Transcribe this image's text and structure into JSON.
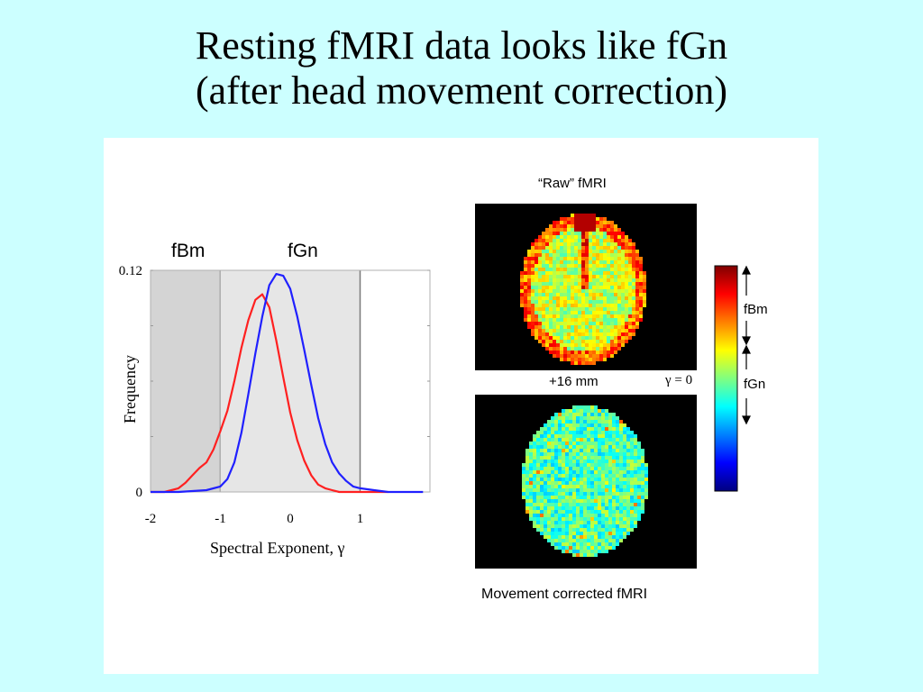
{
  "title": {
    "line1": "Resting fMRI data looks like fGn",
    "line2": "(after head movement correction)"
  },
  "chart_data": {
    "type": "line",
    "xlabel": "Spectral Exponent, γ",
    "ylabel": "Frequency",
    "xlim": [
      -2.0,
      2.0
    ],
    "ylim": [
      0,
      0.12
    ],
    "x_ticks": [
      "-2",
      "-1",
      "0",
      "1"
    ],
    "y_ticks": [
      "0.12",
      "0"
    ],
    "regions": [
      {
        "label": "fBm",
        "from": -2.0,
        "to": -1.0,
        "color": "#d4d4d4"
      },
      {
        "label": "fGn",
        "from": -1.0,
        "to": 1.0,
        "color": "#e6e6e6"
      }
    ],
    "series": [
      {
        "color": "#ff2020",
        "x": [
          -2.0,
          -1.8,
          -1.6,
          -1.5,
          -1.4,
          -1.3,
          -1.2,
          -1.1,
          -1.0,
          -0.9,
          -0.8,
          -0.7,
          -0.6,
          -0.5,
          -0.4,
          -0.3,
          -0.2,
          -0.1,
          0.0,
          0.1,
          0.2,
          0.3,
          0.4,
          0.5,
          0.6,
          0.7,
          0.8,
          0.9,
          1.0,
          1.2,
          1.4
        ],
        "y": [
          0.0,
          0.0,
          0.002,
          0.005,
          0.009,
          0.013,
          0.016,
          0.023,
          0.033,
          0.044,
          0.06,
          0.078,
          0.093,
          0.104,
          0.107,
          0.1,
          0.082,
          0.062,
          0.043,
          0.028,
          0.017,
          0.009,
          0.004,
          0.002,
          0.001,
          0.0,
          0.0,
          0.0,
          0.0,
          0.0,
          0.0
        ]
      },
      {
        "color": "#2020ff",
        "x": [
          -2.0,
          -1.6,
          -1.2,
          -1.0,
          -0.9,
          -0.8,
          -0.7,
          -0.6,
          -0.5,
          -0.4,
          -0.3,
          -0.2,
          -0.1,
          0.0,
          0.1,
          0.2,
          0.3,
          0.4,
          0.5,
          0.6,
          0.7,
          0.8,
          0.9,
          1.0,
          1.2,
          1.4,
          1.6,
          1.9
        ],
        "y": [
          0.0,
          0.0,
          0.001,
          0.003,
          0.007,
          0.016,
          0.032,
          0.053,
          0.075,
          0.095,
          0.112,
          0.118,
          0.117,
          0.11,
          0.095,
          0.077,
          0.058,
          0.04,
          0.026,
          0.016,
          0.01,
          0.006,
          0.003,
          0.002,
          0.001,
          0.0,
          0.0,
          0.0
        ]
      }
    ]
  },
  "images": {
    "raw_title": "“Raw” fMRI",
    "offset_label": "+16 mm",
    "gamma_label": "γ = 0",
    "corrected_title": "Movement corrected fMRI"
  },
  "colorbar": {
    "fbm_label": "fBm",
    "fgn_label": "fGn",
    "colors": [
      "#800000",
      "#ff0000",
      "#ff8000",
      "#ffff00",
      "#80ff80",
      "#00ffff",
      "#0080ff",
      "#0000ff",
      "#000080"
    ]
  }
}
